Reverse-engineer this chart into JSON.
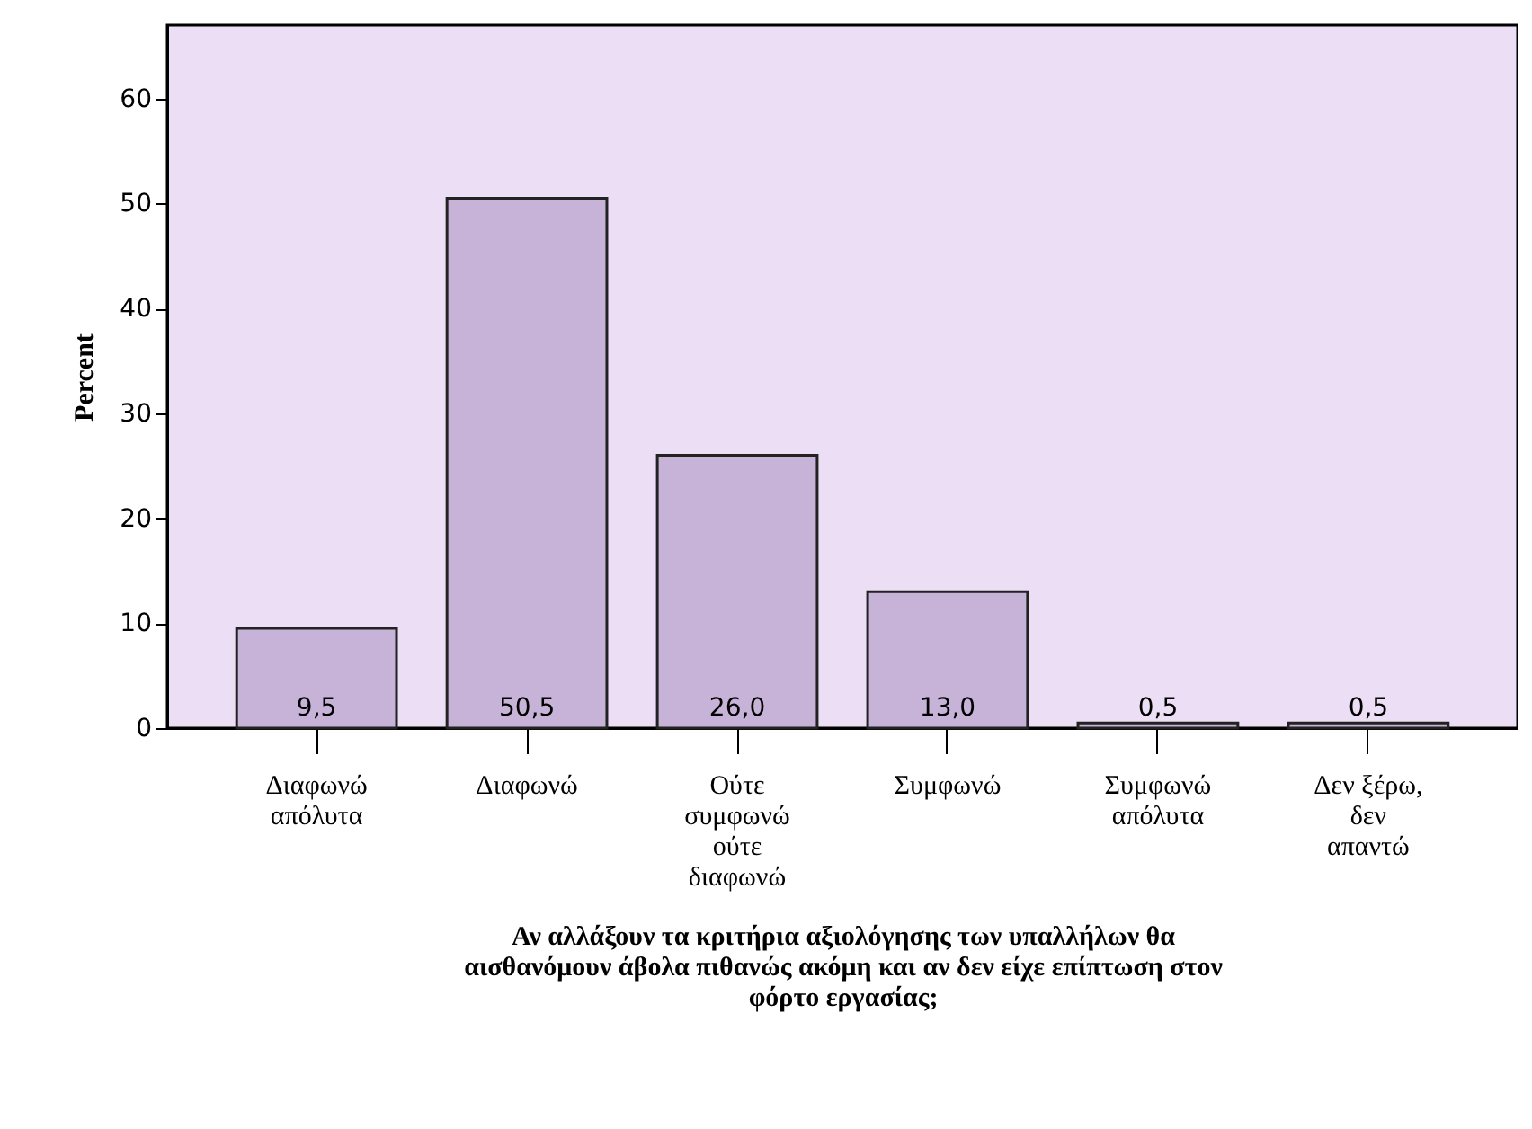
{
  "chart_data": {
    "type": "bar",
    "xlabel": "Αν αλλάξουν τα κριτήρια αξιολόγησης των υπαλλήλων θα αισθανόμουν άβολα πιθανώς ακόμη και αν δεν είχε επίπτωση στον φόρτο εργασίας;",
    "ylabel": "Percent",
    "categories": [
      "Διαφωνώ απόλυτα",
      "Διαφωνώ",
      "Ούτε συμφωνώ ούτε διαφωνώ",
      "Συμφωνώ",
      "Συμφωνώ απόλυτα",
      "Δεν ξέρω, δεν απαντώ"
    ],
    "values": [
      9.5,
      50.5,
      26.0,
      13.0,
      0.5,
      0.5
    ],
    "value_labels": [
      "9,5",
      "50,5",
      "26,0",
      "13,0",
      "0,5",
      "0,5"
    ],
    "color": "#c8b3d8",
    "ylim": [
      0,
      67
    ],
    "yticks": [
      0,
      10,
      20,
      30,
      40,
      50,
      60
    ],
    "grid": false
  }
}
